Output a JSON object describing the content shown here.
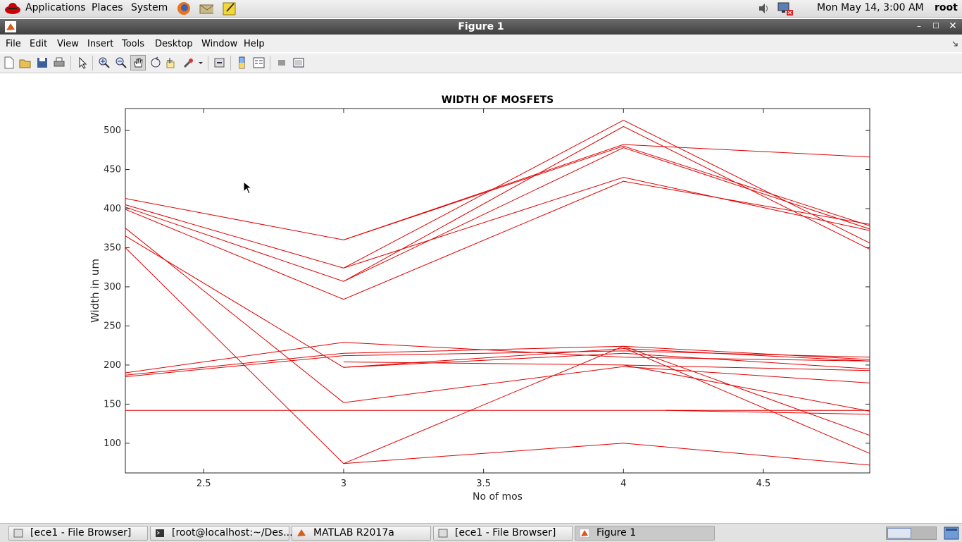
{
  "top_panel": {
    "menus": [
      "Applications",
      "Places",
      "System"
    ],
    "clock": "Mon May 14,  3:00 AM",
    "user": "root"
  },
  "window": {
    "title": "Figure 1"
  },
  "menubar": [
    "File",
    "Edit",
    "View",
    "Insert",
    "Tools",
    "Desktop",
    "Window",
    "Help"
  ],
  "taskbar": {
    "items": [
      "[ece1 - File Browser]",
      "[root@localhost:~/Des...",
      "MATLAB R2017a",
      "[ece1 - File Browser]",
      "Figure 1"
    ]
  },
  "colors": {
    "line": "#e00000",
    "titlebar": "#4a4a4a",
    "panel": "#e6e6e6"
  },
  "chart_data": {
    "type": "line",
    "title": "WIDTH OF MOSFETS",
    "xlabel": "No of mos",
    "ylabel": "Width in um",
    "xlim": [
      2.22,
      4.88
    ],
    "ylim": [
      62,
      528
    ],
    "xticks": [
      2.5,
      3,
      3.5,
      4,
      4.5
    ],
    "xtick_labels": [
      "2.5",
      "3",
      "3.5",
      "4",
      "4.5"
    ],
    "yticks": [
      100,
      150,
      200,
      250,
      300,
      350,
      400,
      450,
      500
    ],
    "ytick_labels": [
      "100",
      "150",
      "200",
      "250",
      "300",
      "350",
      "400",
      "450",
      "500"
    ],
    "grid": false,
    "series": [
      {
        "values": [
          [
            2.22,
            413
          ],
          [
            3,
            360
          ],
          [
            4,
            482
          ],
          [
            4.88,
            466
          ]
        ]
      },
      {
        "values": [
          [
            2.22,
            405
          ],
          [
            3,
            324
          ],
          [
            4,
            513
          ],
          [
            4.88,
            356
          ]
        ]
      },
      {
        "values": [
          [
            2.22,
            402
          ],
          [
            3,
            307
          ],
          [
            4,
            505
          ],
          [
            4.88,
            348
          ]
        ]
      },
      {
        "values": [
          [
            2.22,
            399
          ],
          [
            3,
            284
          ],
          [
            4,
            435
          ],
          [
            4.88,
            380
          ]
        ]
      },
      {
        "values": [
          [
            3,
            360
          ],
          [
            4,
            480
          ],
          [
            4.88,
            378
          ]
        ]
      },
      {
        "values": [
          [
            3,
            307
          ],
          [
            4,
            478
          ],
          [
            4.88,
            374
          ]
        ]
      },
      {
        "values": [
          [
            3,
            324
          ],
          [
            4,
            440
          ],
          [
            4.88,
            372
          ]
        ]
      },
      {
        "values": [
          [
            2.22,
            375
          ],
          [
            3,
            152
          ],
          [
            4,
            198
          ],
          [
            4.88,
            177
          ]
        ]
      },
      {
        "values": [
          [
            2.22,
            365
          ],
          [
            3,
            197
          ],
          [
            4,
            215
          ],
          [
            4.88,
            195
          ]
        ]
      },
      {
        "values": [
          [
            2.22,
            350
          ],
          [
            3,
            74
          ],
          [
            4,
            100
          ],
          [
            4.88,
            72
          ]
        ]
      },
      {
        "values": [
          [
            2.22,
            190
          ],
          [
            3,
            229
          ],
          [
            4,
            210
          ],
          [
            4.88,
            205
          ]
        ]
      },
      {
        "values": [
          [
            2.22,
            187
          ],
          [
            3,
            215
          ],
          [
            4,
            224
          ],
          [
            4.88,
            207
          ]
        ]
      },
      {
        "values": [
          [
            2.22,
            185
          ],
          [
            3,
            212
          ],
          [
            4,
            218
          ],
          [
            4.88,
            210
          ]
        ]
      },
      {
        "values": [
          [
            3,
            204
          ],
          [
            4,
            200
          ],
          [
            4.88,
            193
          ]
        ]
      },
      {
        "values": [
          [
            3,
            197
          ],
          [
            4,
            221
          ],
          [
            4.88,
            205
          ]
        ]
      },
      {
        "values": [
          [
            3,
            74
          ],
          [
            4,
            224
          ],
          [
            4.88,
            110
          ]
        ]
      },
      {
        "values": [
          [
            4,
            222
          ],
          [
            4.88,
            87
          ]
        ]
      },
      {
        "values": [
          [
            4,
            200
          ],
          [
            4.88,
            141
          ]
        ]
      },
      {
        "values": [
          [
            2.22,
            142
          ],
          [
            4.88,
            142
          ]
        ]
      },
      {
        "values": [
          [
            4.15,
            142
          ],
          [
            4.88,
            137
          ]
        ]
      }
    ]
  }
}
